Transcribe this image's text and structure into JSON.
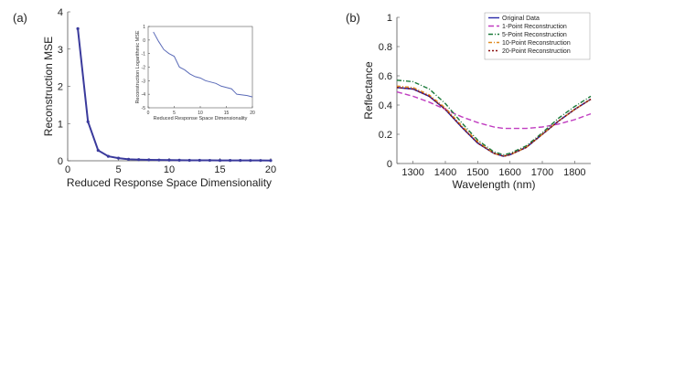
{
  "figure": {
    "panel_a_label": "(a)",
    "panel_b_label": "(b)"
  },
  "chart_data": [
    {
      "id": "a-main",
      "type": "line",
      "xlabel": "Reduced Response Space Dimensionality",
      "ylabel": "Reconstruction MSE",
      "xlim": [
        0,
        20
      ],
      "ylim": [
        0,
        4
      ],
      "xticks": [
        0,
        5,
        10,
        15,
        20
      ],
      "yticks": [
        0,
        1,
        2,
        3,
        4
      ],
      "color": "#3a3a9c",
      "series": [
        {
          "x": [
            1,
            2,
            3,
            4,
            5,
            6,
            7,
            8,
            9,
            10,
            11,
            12,
            13,
            14,
            15,
            16,
            17,
            18,
            19,
            20
          ],
          "y": [
            3.55,
            1.05,
            0.28,
            0.12,
            0.07,
            0.04,
            0.03,
            0.025,
            0.02,
            0.018,
            0.015,
            0.013,
            0.012,
            0.011,
            0.01,
            0.009,
            0.009,
            0.008,
            0.008,
            0.007
          ]
        }
      ]
    },
    {
      "id": "a-inset",
      "type": "line",
      "xlabel": "Reduced Response Space Dimensionality",
      "ylabel": "Reconstruction Logarithmic MSE",
      "xlim": [
        0,
        20
      ],
      "ylim": [
        -5,
        1
      ],
      "xticks": [
        0,
        5,
        10,
        15,
        20
      ],
      "yticks": [
        1,
        0,
        -1,
        -2,
        -3,
        -4,
        -5
      ],
      "color": "#5b6bb8",
      "series": [
        {
          "x": [
            1,
            2,
            3,
            4,
            5,
            6,
            7,
            8,
            9,
            10,
            11,
            12,
            13,
            14,
            15,
            16,
            17,
            18,
            19,
            20
          ],
          "y": [
            0.6,
            -0.1,
            -0.7,
            -1.0,
            -1.2,
            -2.0,
            -2.2,
            -2.5,
            -2.7,
            -2.8,
            -3.0,
            -3.1,
            -3.2,
            -3.4,
            -3.5,
            -3.6,
            -4.0,
            -4.05,
            -4.1,
            -4.2
          ]
        }
      ]
    },
    {
      "id": "b",
      "type": "line",
      "xlabel": "Wavelength (nm)",
      "ylabel": "Reflectance",
      "xlim": [
        1250,
        1850
      ],
      "ylim": [
        0,
        1
      ],
      "xticks": [
        1300,
        1400,
        1500,
        1600,
        1700,
        1800
      ],
      "yticks": [
        0,
        0.2,
        0.4,
        0.6,
        0.8,
        1
      ],
      "x": [
        1250,
        1300,
        1350,
        1400,
        1450,
        1500,
        1550,
        1580,
        1600,
        1650,
        1700,
        1750,
        1800,
        1850
      ],
      "series": [
        {
          "name": "Original Data",
          "color": "#2a2aa8",
          "dash": "",
          "y": [
            0.52,
            0.51,
            0.46,
            0.37,
            0.25,
            0.14,
            0.07,
            0.05,
            0.06,
            0.11,
            0.2,
            0.29,
            0.37,
            0.44
          ]
        },
        {
          "name": "1-Point Reconstruction",
          "color": "#c03cc0",
          "dash": "6,3",
          "y": [
            0.49,
            0.46,
            0.42,
            0.37,
            0.32,
            0.28,
            0.25,
            0.24,
            0.24,
            0.24,
            0.25,
            0.27,
            0.3,
            0.34
          ]
        },
        {
          "name": "5-Point Reconstruction",
          "color": "#1a7a3a",
          "dash": "5,2,1,2",
          "y": [
            0.57,
            0.56,
            0.51,
            0.41,
            0.28,
            0.16,
            0.08,
            0.06,
            0.07,
            0.12,
            0.21,
            0.31,
            0.39,
            0.46
          ]
        },
        {
          "name": "10-Point Reconstruction",
          "color": "#e08a20",
          "dash": "4,2,1,2",
          "y": [
            0.53,
            0.52,
            0.47,
            0.38,
            0.26,
            0.15,
            0.07,
            0.05,
            0.06,
            0.11,
            0.2,
            0.29,
            0.37,
            0.44
          ]
        },
        {
          "name": "20-Point Reconstruction",
          "color": "#8a1010",
          "dash": "2,2",
          "y": [
            0.52,
            0.51,
            0.46,
            0.37,
            0.25,
            0.14,
            0.07,
            0.05,
            0.06,
            0.11,
            0.2,
            0.29,
            0.37,
            0.44
          ]
        }
      ],
      "legend_position": "top-right"
    }
  ]
}
